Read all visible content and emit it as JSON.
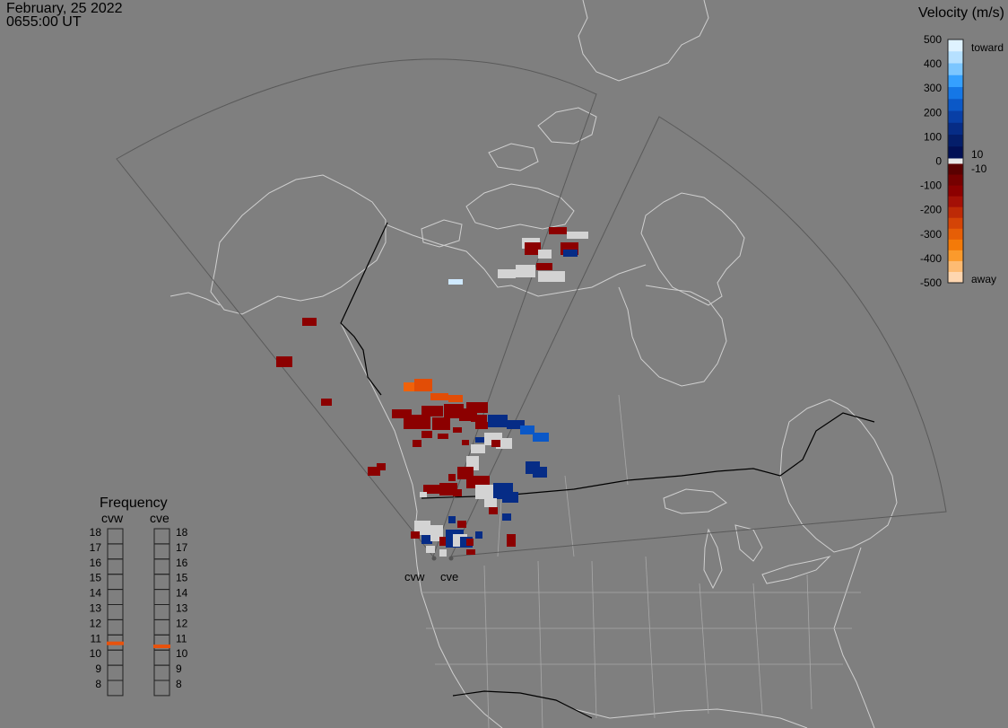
{
  "header": {
    "date": "February, 25 2022",
    "time": "0655:00 UT"
  },
  "velocity_scale": {
    "title": "Velocity (m/s)",
    "ticks": [
      "500",
      "400",
      "300",
      "200",
      "100",
      "0",
      "-100",
      "-200",
      "-300",
      "-400",
      "-500"
    ],
    "toward_label": "toward",
    "away_label": "away",
    "threshold_pos": "10",
    "threshold_neg": "-10",
    "colors": {
      "toward": [
        "#dff2ff",
        "#b6e0ff",
        "#7cc6ff",
        "#35a0ff",
        "#1577e6",
        "#0b58c7",
        "#083fa6",
        "#062c86",
        "#041e6a",
        "#021055"
      ],
      "away": [
        "#5a0000",
        "#760000",
        "#8c0000",
        "#a41006",
        "#bd2a06",
        "#d44406",
        "#e65e06",
        "#f47a08",
        "#fb9a2c",
        "#fdbb73",
        "#fed6b0"
      ]
    }
  },
  "frequency": {
    "title": "Frequency",
    "radars": [
      {
        "name": "cvw",
        "value": 10.8
      },
      {
        "name": "cve",
        "value": 10.6
      }
    ],
    "levels": [
      "18",
      "17",
      "16",
      "15",
      "14",
      "13",
      "12",
      "11",
      "10",
      "9",
      "8"
    ],
    "marker_color": "#e8520c"
  },
  "stations": [
    {
      "name": "cvw"
    },
    {
      "name": "cve"
    }
  ],
  "colors": {
    "background": "#7f7f7f",
    "coast": "#d0d0d0",
    "border": "#000000",
    "fov": "#555555",
    "ground_scatter": "#d3d3d3"
  }
}
